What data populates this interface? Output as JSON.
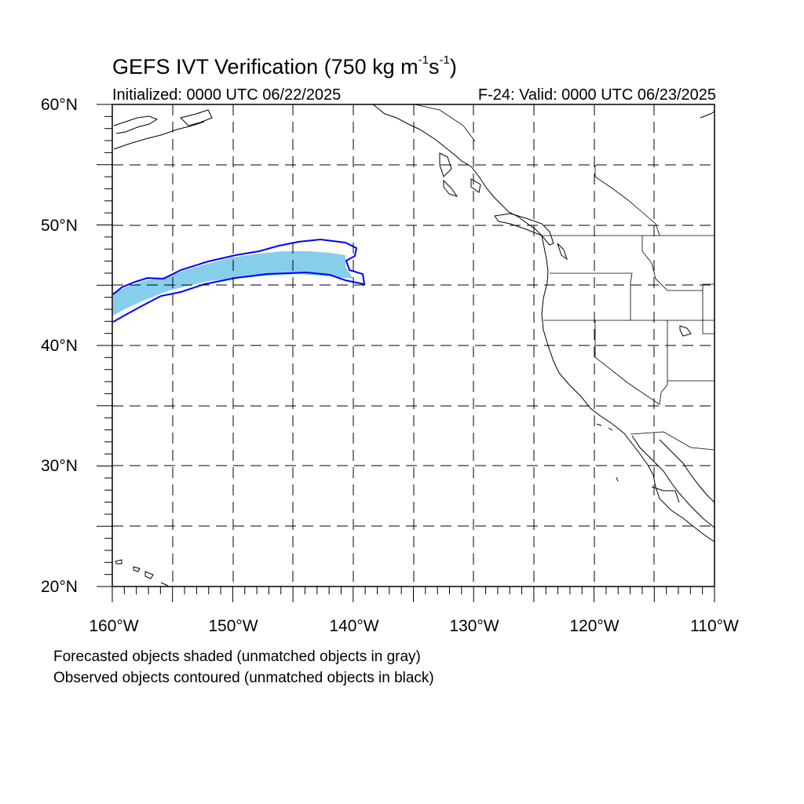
{
  "title": {
    "main": "GEFS IVT Verification (750 kg m",
    "sup1": "-1",
    "mid": "s",
    "sup2": "-1",
    "end": ")"
  },
  "subtitle_left": "Initialized: 0000 UTC 06/22/2025",
  "subtitle_right": "F-24: Valid: 0000 UTC 06/23/2025",
  "lat_labels": [
    "60°N",
    "50°N",
    "40°N",
    "30°N",
    "20°N"
  ],
  "lon_labels": [
    "160°W",
    "150°W",
    "140°W",
    "130°W",
    "120°W",
    "110°W"
  ],
  "notes": [
    "Forecasted objects shaded (unmatched objects in gray)",
    "Observed objects contoured (unmatched objects in black)"
  ],
  "colors": {
    "forecast_fill": "#87ceeb",
    "observed_contour": "#0000ff",
    "grid": "#000000",
    "coastline": "#000000"
  }
}
